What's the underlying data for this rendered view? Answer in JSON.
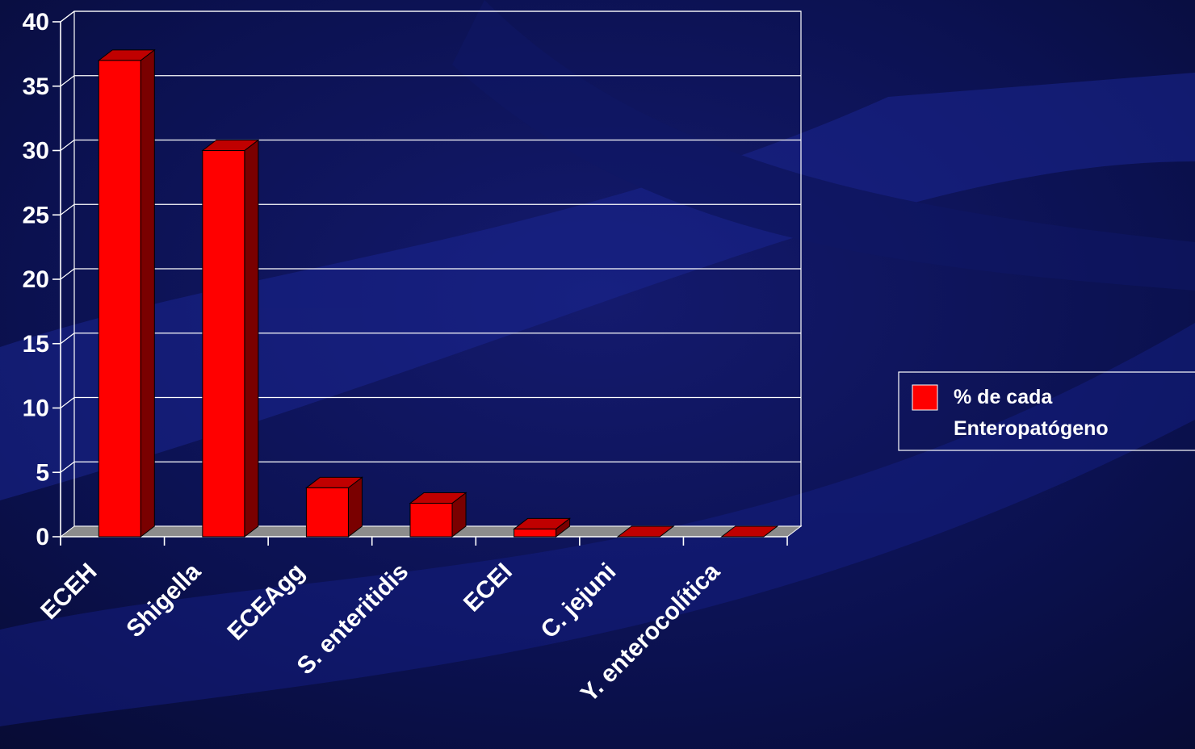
{
  "slide": {
    "background_colors": [
      "#0a0f3c",
      "#141a6e",
      "#0b1150"
    ],
    "accent_color": "#ff0000"
  },
  "chart_data": {
    "type": "bar",
    "style": "3d",
    "categories": [
      "ECEH",
      "Shigella",
      "ECEAgg",
      "S. enteritidis",
      "ECEI",
      "C. jejuni",
      "Y. enterocolítica"
    ],
    "series": [
      {
        "name": "% de cada Enteropatógeno",
        "values": [
          37,
          30,
          3.8,
          2.6,
          0.6,
          0,
          0
        ],
        "color": "#ff0000"
      }
    ],
    "ylim": [
      0,
      40
    ],
    "yticks": [
      0,
      5,
      10,
      15,
      20,
      25,
      30,
      35,
      40
    ],
    "grid": true,
    "legend": {
      "position": "right",
      "label_lines": [
        "% de cada",
        "Enteropatógeno"
      ]
    },
    "title": "",
    "xlabel": "",
    "ylabel": ""
  }
}
